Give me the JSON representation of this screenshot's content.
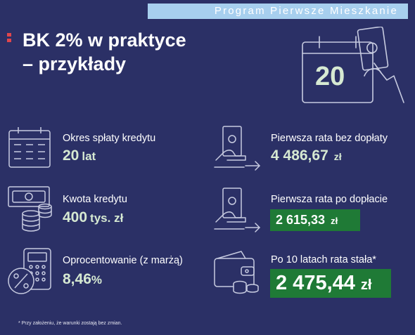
{
  "banner": "Program  Pierwsze  Mieszkanie",
  "title": {
    "line1": "BK 2% w praktyce",
    "line2": "– przykłady"
  },
  "calendar_badge": "20",
  "left": [
    {
      "label": "Okres spłaty kredytu",
      "value": "20",
      "unit": "lat",
      "icon": "calendar-icon"
    },
    {
      "label": "Kwota kredytu",
      "value": "400",
      "unit": "tys. zł",
      "icon": "cash-coins-icon"
    },
    {
      "label": "Oprocentowanie (z marżą)",
      "value": "8,46",
      "unit": "%",
      "icon": "calculator-percent-icon"
    }
  ],
  "right": [
    {
      "label": "Pierwsza rata bez dopłaty",
      "value": "4 486,67",
      "unit": "zł",
      "icon": "hand-payment-icon"
    },
    {
      "label": "Pierwsza rata po dopłacie",
      "value": "2 615,33",
      "unit": "zł",
      "icon": "hand-payment-icon"
    },
    {
      "label": "Po 10 latach rata stała*",
      "value": "2 475,44",
      "unit": "zł",
      "icon": "wallet-coins-icon"
    }
  ],
  "footnote": "* Przy założeniu, że warunki zostają bez zmian.",
  "colors": {
    "background": "#2b3066",
    "banner": "#a7cfee",
    "accent_red": "#e0464c",
    "highlight_green": "#1f7a36",
    "value_text": "#d6e9d2",
    "icon_stroke": "#c7cbe0"
  }
}
